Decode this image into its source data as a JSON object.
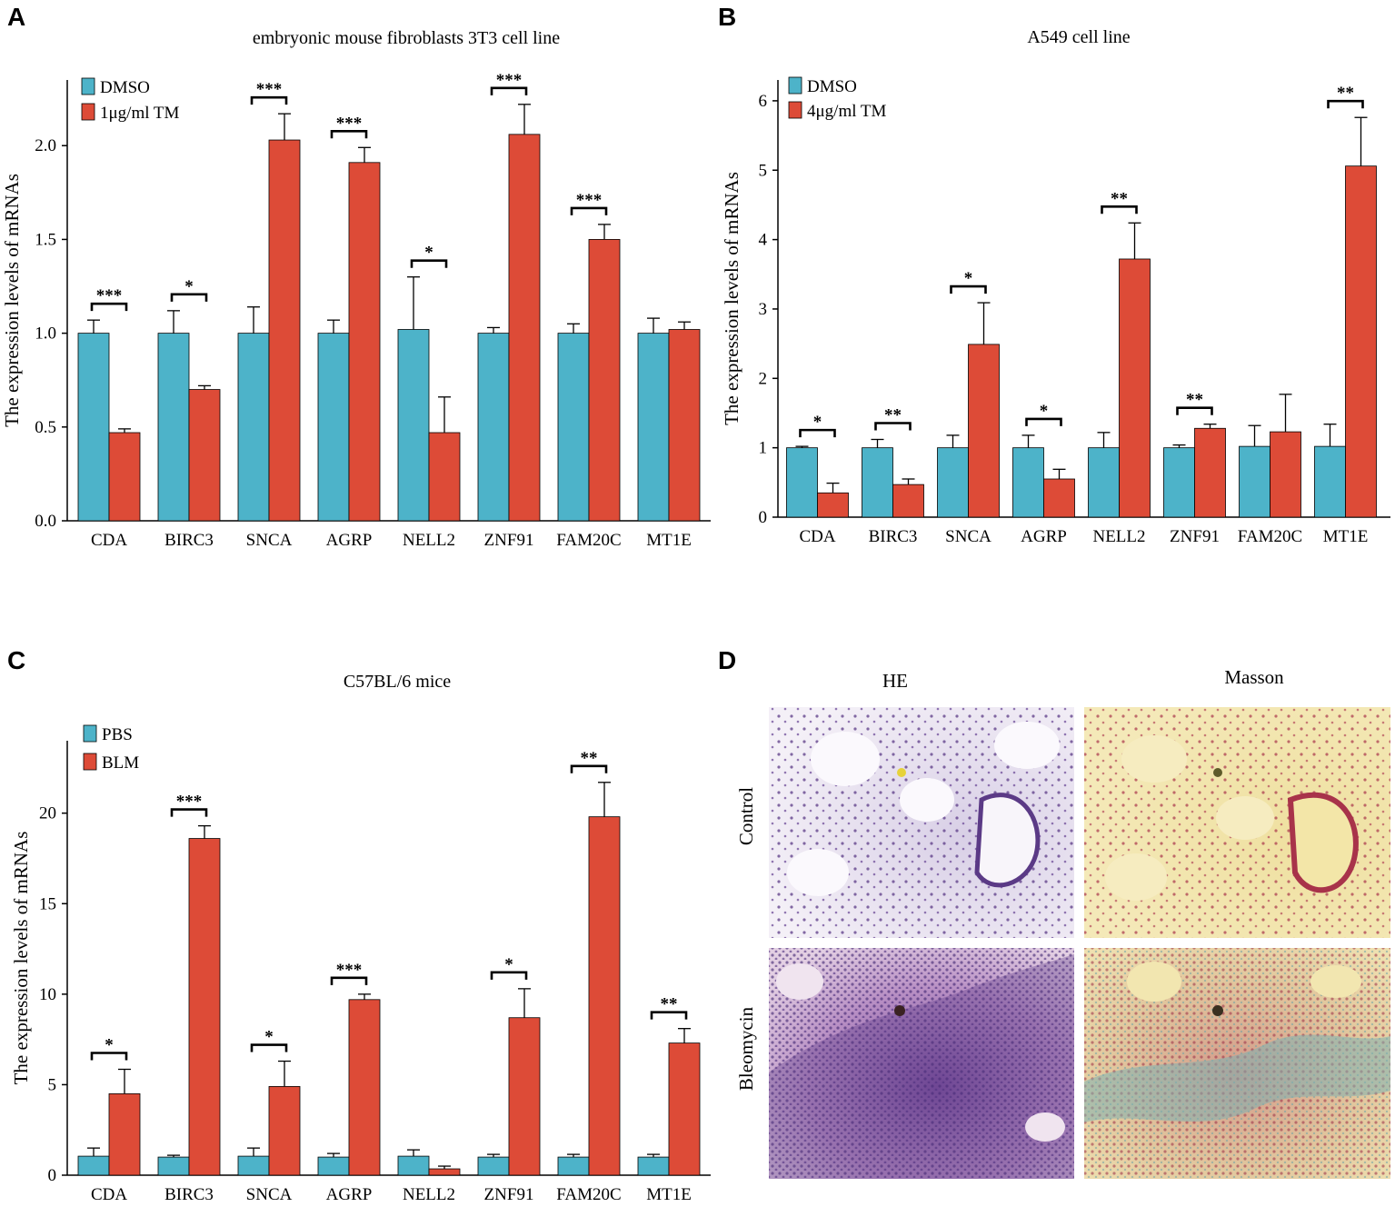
{
  "colors": {
    "series_a": "#4db3c9",
    "series_b": "#dd4b37"
  },
  "chart_data": [
    {
      "panel": "A",
      "type": "bar",
      "title": "embryonic mouse fibroblasts 3T3 cell line",
      "ylabel": "The expression levels of mRNAs",
      "xlabel": "",
      "ylim": [
        0,
        2.35
      ],
      "yticks": [
        "0.0",
        "0.5",
        "1.0",
        "1.5",
        "2.0"
      ],
      "ytick_values": [
        0,
        0.5,
        1.0,
        1.5,
        2.0
      ],
      "categories": [
        "CDA",
        "BIRC3",
        "SNCA",
        "AGRP",
        "NELL2",
        "ZNF91",
        "FAM20C",
        "MT1E"
      ],
      "legend": [
        "DMSO",
        "1μg/ml TM"
      ],
      "legend_position": "top-left",
      "series": [
        {
          "name": "DMSO",
          "values": [
            1.0,
            1.0,
            1.0,
            1.0,
            1.02,
            1.0,
            1.0,
            1.0
          ],
          "errors": [
            0.07,
            0.12,
            0.14,
            0.07,
            0.28,
            0.03,
            0.05,
            0.08
          ]
        },
        {
          "name": "1μg/ml TM",
          "values": [
            0.47,
            0.7,
            2.03,
            1.91,
            0.47,
            2.06,
            1.5,
            1.02
          ],
          "errors": [
            0.02,
            0.02,
            0.14,
            0.08,
            0.19,
            0.16,
            0.08,
            0.04
          ]
        }
      ],
      "significance": [
        "***",
        "*",
        "***",
        "***",
        "*",
        "***",
        "***",
        ""
      ]
    },
    {
      "panel": "B",
      "type": "bar",
      "title": "A549 cell line",
      "ylabel": "The expression levels of mRNAs",
      "xlabel": "",
      "ylim": [
        0,
        6.3
      ],
      "yticks": [
        "0",
        "1",
        "2",
        "3",
        "4",
        "5",
        "6"
      ],
      "ytick_values": [
        0,
        1,
        2,
        3,
        4,
        5,
        6
      ],
      "categories": [
        "CDA",
        "BIRC3",
        "SNCA",
        "AGRP",
        "NELL2",
        "ZNF91",
        "FAM20C",
        "MT1E"
      ],
      "legend": [
        "DMSO",
        "4μg/ml TM"
      ],
      "legend_position": "top-left",
      "series": [
        {
          "name": "DMSO",
          "values": [
            1.0,
            1.0,
            1.0,
            1.0,
            1.0,
            1.0,
            1.02,
            1.02
          ],
          "errors": [
            0.02,
            0.12,
            0.18,
            0.18,
            0.22,
            0.04,
            0.3,
            0.32
          ]
        },
        {
          "name": "4μg/ml TM",
          "values": [
            0.35,
            0.47,
            2.49,
            0.55,
            3.72,
            1.28,
            1.23,
            5.06
          ],
          "errors": [
            0.14,
            0.08,
            0.6,
            0.14,
            0.52,
            0.06,
            0.54,
            0.7
          ]
        }
      ],
      "significance": [
        "*",
        "**",
        "*",
        "*",
        "**",
        "**",
        "",
        "**"
      ]
    },
    {
      "panel": "C",
      "type": "bar",
      "title": "C57BL/6 mice",
      "ylabel": "The expression levels of mRNAs",
      "xlabel": "",
      "ylim": [
        0,
        24
      ],
      "yticks": [
        "0",
        "5",
        "10",
        "15",
        "20"
      ],
      "ytick_values": [
        0,
        5,
        10,
        15,
        20
      ],
      "categories": [
        "CDA",
        "BIRC3",
        "SNCA",
        "AGRP",
        "NELL2",
        "ZNF91",
        "FAM20C",
        "MT1E"
      ],
      "legend": [
        "PBS",
        "BLM"
      ],
      "legend_position": "top-left",
      "series": [
        {
          "name": "PBS",
          "values": [
            1.05,
            1.0,
            1.05,
            1.0,
            1.05,
            1.0,
            1.0,
            1.0
          ],
          "errors": [
            0.45,
            0.1,
            0.45,
            0.2,
            0.35,
            0.15,
            0.15,
            0.15
          ]
        },
        {
          "name": "BLM",
          "values": [
            4.5,
            18.6,
            4.9,
            9.7,
            0.35,
            8.7,
            19.8,
            7.3
          ],
          "errors": [
            1.35,
            0.7,
            1.4,
            0.3,
            0.15,
            1.6,
            1.9,
            0.8
          ]
        }
      ],
      "significance": [
        "*",
        "***",
        "*",
        "***",
        "",
        "*",
        "**",
        "**"
      ]
    }
  ],
  "panel_labels": [
    "A",
    "B",
    "C",
    "D"
  ],
  "histology": {
    "columns": [
      "HE",
      "Masson"
    ],
    "rows": [
      "Control",
      "Bleomycin"
    ]
  }
}
